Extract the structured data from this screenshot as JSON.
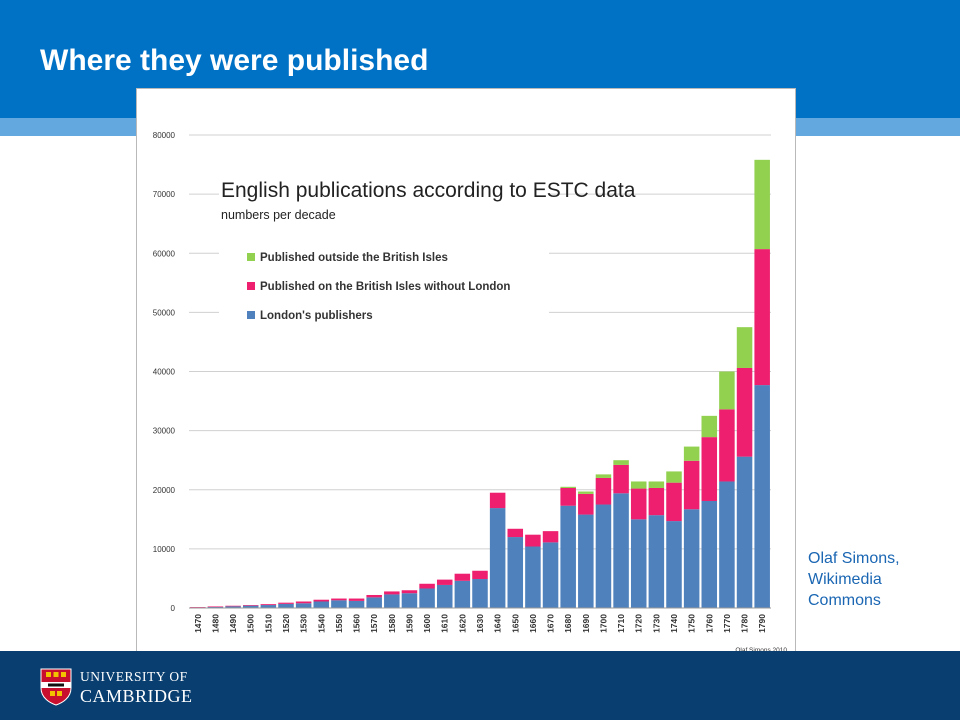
{
  "slide": {
    "title": "Where they were published"
  },
  "credit": {
    "line1": "Olaf Simons,",
    "line2": "Wikimedia",
    "line3": "Commons"
  },
  "logo": {
    "line1": "UNIVERSITY OF",
    "line2": "CAMBRIDGE"
  },
  "colors": {
    "header_blue": "#0072c6",
    "header_light_blue": "#64a8e0",
    "footer_navy": "#093f70",
    "london": "#4f81bd",
    "british_isles": "#ee1f6e",
    "outside": "#92d050"
  },
  "chart_data": {
    "type": "bar",
    "stacked": true,
    "title": "English publications according to ESTC data",
    "subtitle": "numbers per decade",
    "source_note": "Olaf Simons 2010",
    "xlabel": "",
    "ylabel": "",
    "ylim": [
      0,
      80000
    ],
    "yticks": [
      0,
      10000,
      20000,
      30000,
      40000,
      50000,
      60000,
      70000,
      80000
    ],
    "grid": true,
    "legend_position": "top-left",
    "categories": [
      "1470",
      "1480",
      "1490",
      "1500",
      "1510",
      "1520",
      "1530",
      "1540",
      "1550",
      "1560",
      "1570",
      "1580",
      "1590",
      "1600",
      "1610",
      "1620",
      "1630",
      "1640",
      "1650",
      "1660",
      "1670",
      "1680",
      "1690",
      "1700",
      "1710",
      "1720",
      "1730",
      "1740",
      "1750",
      "1760",
      "1770",
      "1780",
      "1790"
    ],
    "series": [
      {
        "name": "London's publishers",
        "color": "#4f81bd",
        "values": [
          100,
          200,
          300,
          400,
          500,
          700,
          800,
          1100,
          1300,
          1200,
          1800,
          2300,
          2500,
          3300,
          3900,
          4600,
          4900,
          16900,
          12000,
          10400,
          11100,
          17300,
          15800,
          17500,
          19400,
          15000,
          15700,
          14700,
          16700,
          18100,
          21400,
          25600,
          37700
        ]
      },
      {
        "name": "Published on the British Isles without London",
        "color": "#ee1f6e",
        "values": [
          50,
          60,
          80,
          100,
          150,
          200,
          300,
          300,
          300,
          400,
          400,
          500,
          500,
          800,
          900,
          1200,
          1400,
          2600,
          1400,
          2000,
          1900,
          3000,
          3500,
          4500,
          4800,
          5200,
          4600,
          6500,
          8200,
          10800,
          12200,
          15000,
          23000
        ]
      },
      {
        "name": "Published outside the British Isles",
        "color": "#92d050",
        "values": [
          0,
          0,
          0,
          0,
          0,
          0,
          0,
          0,
          0,
          0,
          0,
          0,
          0,
          0,
          0,
          0,
          0,
          0,
          0,
          0,
          0,
          200,
          400,
          600,
          800,
          1200,
          1100,
          1900,
          2400,
          3600,
          6400,
          6900,
          15100
        ]
      }
    ]
  }
}
